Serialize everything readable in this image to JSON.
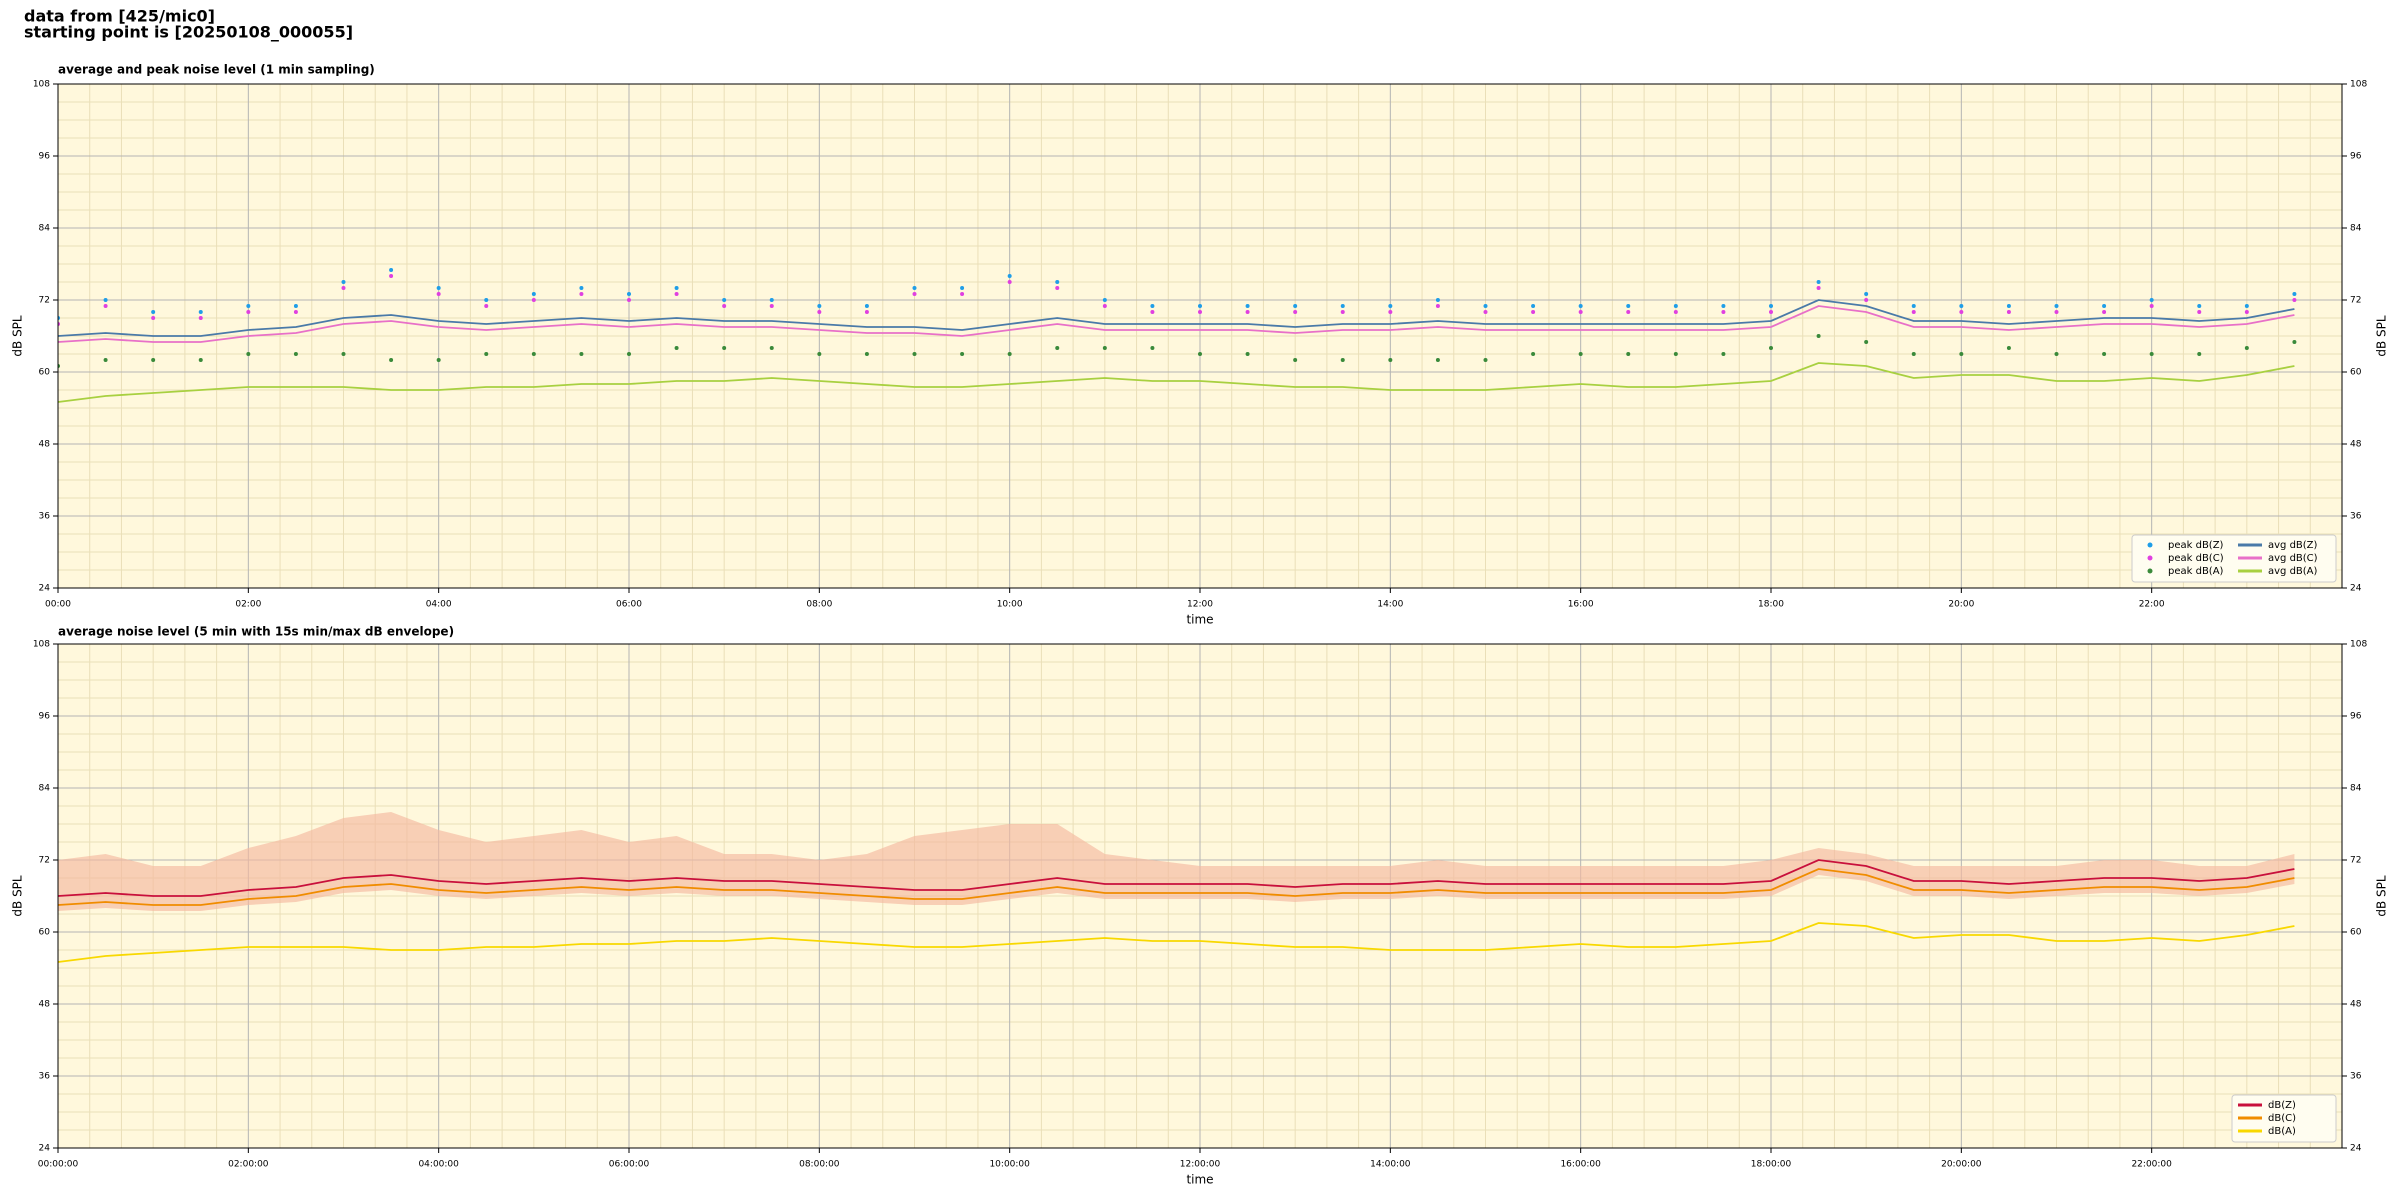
{
  "header": {
    "line1": "data from [425/mic0]",
    "line2": "starting point is [20250108_000055]"
  },
  "chart_data": [
    {
      "type": "line",
      "title": "average and peak noise level (1 min sampling)",
      "xlabel": "time",
      "ylabel": "dB SPL",
      "background": "#fff8dc",
      "grid": true,
      "legend": "lower right",
      "legend_columns": 2,
      "x": [
        0,
        0.5,
        1,
        1.5,
        2,
        2.5,
        3,
        3.5,
        4,
        4.5,
        5,
        5.5,
        6,
        6.5,
        7,
        7.5,
        8,
        8.5,
        9,
        9.5,
        10,
        10.5,
        11,
        11.5,
        12,
        12.5,
        13,
        13.5,
        14,
        14.5,
        15,
        15.5,
        16,
        16.5,
        17,
        17.5,
        18,
        18.5,
        19,
        19.5,
        20,
        20.5,
        21,
        21.5,
        22,
        22.5,
        23,
        23.5
      ],
      "xlim": [
        0,
        24
      ],
      "xticks": [
        {
          "value": 0,
          "label": "00:00"
        },
        {
          "value": 2,
          "label": "02:00"
        },
        {
          "value": 4,
          "label": "04:00"
        },
        {
          "value": 6,
          "label": "06:00"
        },
        {
          "value": 8,
          "label": "08:00"
        },
        {
          "value": 10,
          "label": "10:00"
        },
        {
          "value": 12,
          "label": "12:00"
        },
        {
          "value": 14,
          "label": "14:00"
        },
        {
          "value": 16,
          "label": "16:00"
        },
        {
          "value": 18,
          "label": "18:00"
        },
        {
          "value": 20,
          "label": "20:00"
        },
        {
          "value": 22,
          "label": "22:00"
        }
      ],
      "ylim": [
        24,
        108
      ],
      "yticks": [
        24,
        36,
        48,
        60,
        72,
        84,
        96,
        108
      ],
      "series": [
        {
          "name": "peak dB(Z)",
          "marker": "dot",
          "color": "#1f9ee8",
          "values": [
            69,
            72,
            70,
            70,
            71,
            71,
            75,
            77,
            74,
            72,
            73,
            74,
            73,
            74,
            72,
            72,
            71,
            71,
            74,
            74,
            76,
            75,
            72,
            71,
            71,
            71,
            71,
            71,
            71,
            72,
            71,
            71,
            71,
            71,
            71,
            71,
            71,
            75,
            73,
            71,
            71,
            71,
            71,
            71,
            72,
            71,
            71,
            73
          ]
        },
        {
          "name": "peak dB(C)",
          "marker": "dot",
          "color": "#e040e0",
          "values": [
            68,
            71,
            69,
            69,
            70,
            70,
            74,
            76,
            73,
            71,
            72,
            73,
            72,
            73,
            71,
            71,
            70,
            70,
            73,
            73,
            75,
            74,
            71,
            70,
            70,
            70,
            70,
            70,
            70,
            71,
            70,
            70,
            70,
            70,
            70,
            70,
            70,
            74,
            72,
            70,
            70,
            70,
            70,
            70,
            71,
            70,
            70,
            72
          ]
        },
        {
          "name": "peak dB(A)",
          "marker": "dot",
          "color": "#3a8a3a",
          "values": [
            61,
            62,
            62,
            62,
            63,
            63,
            63,
            62,
            62,
            63,
            63,
            63,
            63,
            64,
            64,
            64,
            63,
            63,
            63,
            63,
            63,
            64,
            64,
            64,
            63,
            63,
            62,
            62,
            62,
            62,
            62,
            63,
            63,
            63,
            63,
            63,
            64,
            66,
            65,
            63,
            63,
            64,
            63,
            63,
            63,
            63,
            64,
            65
          ]
        },
        {
          "name": "avg dB(Z)",
          "marker": "line",
          "color": "#4a7aa8",
          "values": [
            66,
            66.5,
            66,
            66,
            67,
            67.5,
            69,
            69.5,
            68.5,
            68,
            68.5,
            69,
            68.5,
            69,
            68.5,
            68.5,
            68,
            67.5,
            67.5,
            67,
            68,
            69,
            68,
            68,
            68,
            68,
            67.5,
            68,
            68,
            68.5,
            68,
            68,
            68,
            68,
            68,
            68,
            68.5,
            72,
            71,
            68.5,
            68.5,
            68,
            68.5,
            69,
            69,
            68.5,
            69,
            70.5
          ]
        },
        {
          "name": "avg dB(C)",
          "marker": "line",
          "color": "#e870c8",
          "values": [
            65,
            65.5,
            65,
            65,
            66,
            66.5,
            68,
            68.5,
            67.5,
            67,
            67.5,
            68,
            67.5,
            68,
            67.5,
            67.5,
            67,
            66.5,
            66.5,
            66,
            67,
            68,
            67,
            67,
            67,
            67,
            66.5,
            67,
            67,
            67.5,
            67,
            67,
            67,
            67,
            67,
            67,
            67.5,
            71,
            70,
            67.5,
            67.5,
            67,
            67.5,
            68,
            68,
            67.5,
            68,
            69.5
          ]
        },
        {
          "name": "avg dB(A)",
          "marker": "line",
          "color": "#a8d040",
          "values": [
            55,
            56,
            56.5,
            57,
            57.5,
            57.5,
            57.5,
            57,
            57,
            57.5,
            57.5,
            58,
            58,
            58.5,
            58.5,
            59,
            58.5,
            58,
            57.5,
            57.5,
            58,
            58.5,
            59,
            58.5,
            58.5,
            58,
            57.5,
            57.5,
            57,
            57,
            57,
            57.5,
            58,
            57.5,
            57.5,
            58,
            58.5,
            61.5,
            61,
            59,
            59.5,
            59.5,
            58.5,
            58.5,
            59,
            58.5,
            59.5,
            61
          ]
        }
      ]
    },
    {
      "type": "line",
      "title": "average noise level (5 min with 15s min/max dB envelope)",
      "xlabel": "time",
      "ylabel": "dB SPL",
      "background": "#fff8dc",
      "grid": true,
      "legend": "lower right",
      "legend_columns": 1,
      "x": [
        0,
        0.5,
        1,
        1.5,
        2,
        2.5,
        3,
        3.5,
        4,
        4.5,
        5,
        5.5,
        6,
        6.5,
        7,
        7.5,
        8,
        8.5,
        9,
        9.5,
        10,
        10.5,
        11,
        11.5,
        12,
        12.5,
        13,
        13.5,
        14,
        14.5,
        15,
        15.5,
        16,
        16.5,
        17,
        17.5,
        18,
        18.5,
        19,
        19.5,
        20,
        20.5,
        21,
        21.5,
        22,
        22.5,
        23,
        23.5
      ],
      "xlim": [
        0,
        24
      ],
      "xticks": [
        {
          "value": 0,
          "label": "00:00:00"
        },
        {
          "value": 2,
          "label": "02:00:00"
        },
        {
          "value": 4,
          "label": "04:00:00"
        },
        {
          "value": 6,
          "label": "06:00:00"
        },
        {
          "value": 8,
          "label": "08:00:00"
        },
        {
          "value": 10,
          "label": "10:00:00"
        },
        {
          "value": 12,
          "label": "12:00:00"
        },
        {
          "value": 14,
          "label": "14:00:00"
        },
        {
          "value": 16,
          "label": "16:00:00"
        },
        {
          "value": 18,
          "label": "18:00:00"
        },
        {
          "value": 20,
          "label": "20:00:00"
        },
        {
          "value": 22,
          "label": "22:00:00"
        }
      ],
      "ylim": [
        24,
        108
      ],
      "yticks": [
        24,
        36,
        48,
        60,
        72,
        84,
        96,
        108
      ],
      "envelope": {
        "color": "#f4b8a0",
        "low": [
          63.5,
          64,
          63.5,
          63.5,
          64.5,
          65,
          66.5,
          67,
          66,
          65.5,
          66,
          66.5,
          66,
          66.5,
          66,
          66,
          65.5,
          65,
          64.5,
          64.5,
          65.5,
          66.5,
          65.5,
          65.5,
          65.5,
          65.5,
          65,
          65.5,
          65.5,
          66,
          65.5,
          65.5,
          65.5,
          65.5,
          65.5,
          65.5,
          66,
          69.5,
          68.5,
          66,
          66,
          65.5,
          66,
          66.5,
          66.5,
          66,
          66.5,
          68
        ],
        "high": [
          72,
          73,
          71,
          71,
          74,
          76,
          79,
          80,
          77,
          75,
          76,
          77,
          75,
          76,
          73,
          73,
          72,
          73,
          76,
          77,
          78,
          78,
          73,
          72,
          71,
          71,
          71,
          71,
          71,
          72,
          71,
          71,
          71,
          71,
          71,
          71,
          72,
          74,
          73,
          71,
          71,
          71,
          71,
          72,
          72,
          71,
          71,
          73
        ]
      },
      "series": [
        {
          "name": "dB(Z)",
          "marker": "line",
          "color": "#c8103c",
          "values": [
            66,
            66.5,
            66,
            66,
            67,
            67.5,
            69,
            69.5,
            68.5,
            68,
            68.5,
            69,
            68.5,
            69,
            68.5,
            68.5,
            68,
            67.5,
            67,
            67,
            68,
            69,
            68,
            68,
            68,
            68,
            67.5,
            68,
            68,
            68.5,
            68,
            68,
            68,
            68,
            68,
            68,
            68.5,
            72,
            71,
            68.5,
            68.5,
            68,
            68.5,
            69,
            69,
            68.5,
            69,
            70.5
          ]
        },
        {
          "name": "dB(C)",
          "marker": "line",
          "color": "#f08c00",
          "values": [
            64.5,
            65,
            64.5,
            64.5,
            65.5,
            66,
            67.5,
            68,
            67,
            66.5,
            67,
            67.5,
            67,
            67.5,
            67,
            67,
            66.5,
            66,
            65.5,
            65.5,
            66.5,
            67.5,
            66.5,
            66.5,
            66.5,
            66.5,
            66,
            66.5,
            66.5,
            67,
            66.5,
            66.5,
            66.5,
            66.5,
            66.5,
            66.5,
            67,
            70.5,
            69.5,
            67,
            67,
            66.5,
            67,
            67.5,
            67.5,
            67,
            67.5,
            69
          ]
        },
        {
          "name": "dB(A)",
          "marker": "line",
          "color": "#f8d800",
          "values": [
            55,
            56,
            56.5,
            57,
            57.5,
            57.5,
            57.5,
            57,
            57,
            57.5,
            57.5,
            58,
            58,
            58.5,
            58.5,
            59,
            58.5,
            58,
            57.5,
            57.5,
            58,
            58.5,
            59,
            58.5,
            58.5,
            58,
            57.5,
            57.5,
            57,
            57,
            57,
            57.5,
            58,
            57.5,
            57.5,
            58,
            58.5,
            61.5,
            61,
            59,
            59.5,
            59.5,
            58.5,
            58.5,
            59,
            58.5,
            59.5,
            61
          ]
        }
      ]
    }
  ]
}
